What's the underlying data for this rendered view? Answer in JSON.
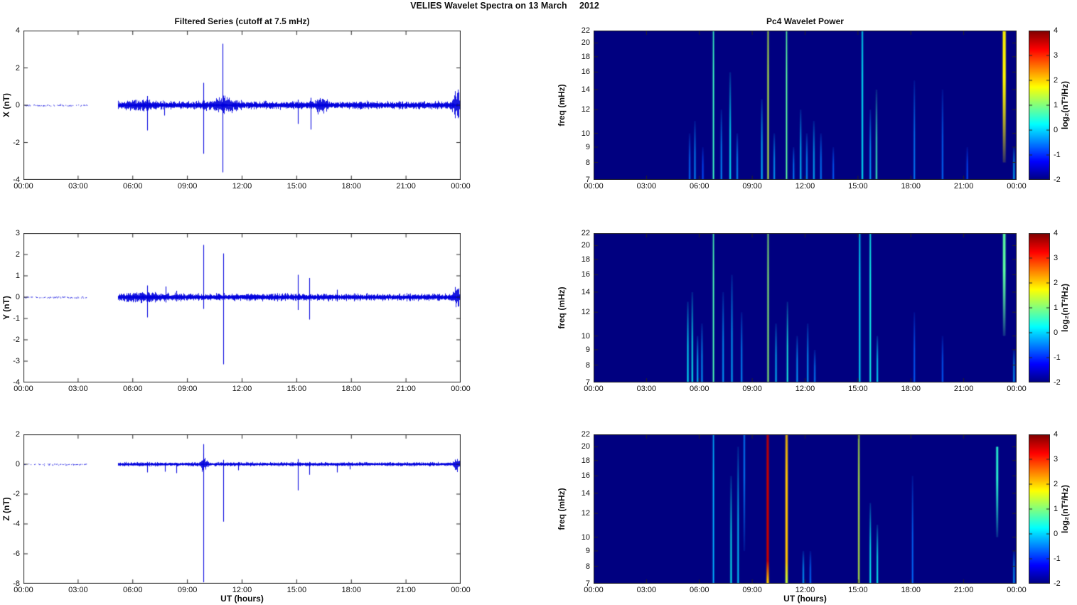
{
  "figure_title": "VELIES Wavelet Spectra on 13 March     2012",
  "colors": {
    "series_line": "#0000dd",
    "axis_frame": "#262626",
    "background": "#ffffff",
    "spectrogram_background": "#000080"
  },
  "x_axis": {
    "label": "UT (hours)",
    "tick_labels": [
      "00:00",
      "03:00",
      "06:00",
      "09:00",
      "12:00",
      "15:00",
      "18:00",
      "21:00",
      "00:00"
    ],
    "tick_hours": [
      0,
      3,
      6,
      9,
      12,
      15,
      18,
      21,
      24
    ],
    "range_hours": [
      0,
      24
    ]
  },
  "left_column_title": "Filtered Series (cutoff at 7.5 mHz)",
  "right_column_title": "Pc4 Wavelet Power",
  "spectrogram_axis": {
    "ylabel": "freq (mHz)",
    "yticks_mhz": [
      22,
      20,
      18,
      16,
      14,
      12,
      10,
      9,
      8,
      7
    ],
    "f_range_mhz": [
      7,
      22
    ],
    "scale": "log"
  },
  "colorbar": {
    "label": "log₂(nT²/Hz)",
    "ticks": [
      4,
      3,
      2,
      1,
      0,
      -1,
      -2
    ],
    "range": [
      -2,
      4
    ],
    "colormap": "jet"
  },
  "chart_data": [
    {
      "id": "filtered_series_x",
      "type": "line",
      "component": "X",
      "ylabel": "X (nT)",
      "ylim": [
        -4,
        4
      ],
      "yticks": [
        4,
        2,
        0,
        -2,
        -4
      ],
      "quiet_segment": {
        "t": [
          0,
          3.5
        ],
        "amplitude_nT": 0.02
      },
      "gap_segment": {
        "t": [
          3.5,
          5.2
        ]
      },
      "noise_segment": {
        "t": [
          5.2,
          24
        ],
        "amplitude_nT": 0.16
      },
      "bursts": [
        {
          "t": 6.3,
          "amp": 0.1,
          "w": 0.5
        },
        {
          "t": 10.93,
          "amp": 0.25,
          "w": 0.5
        },
        {
          "t": 16.35,
          "amp": 0.3,
          "w": 0.2
        },
        {
          "t": 23.8,
          "amp": 0.62,
          "w": 0.15
        }
      ],
      "spikes": [
        {
          "t": 6.78,
          "up": 0.5,
          "dn": -1.35
        },
        {
          "t": 7.72,
          "up": 0.2,
          "dn": -0.55
        },
        {
          "t": 9.88,
          "up": 1.2,
          "dn": -2.6
        },
        {
          "t": 10.93,
          "up": 3.3,
          "dn": -3.6
        },
        {
          "t": 15.05,
          "up": 0.3,
          "dn": -1.0
        },
        {
          "t": 15.75,
          "up": 0.4,
          "dn": -1.3
        }
      ]
    },
    {
      "id": "filtered_series_y",
      "type": "line",
      "component": "Y",
      "ylabel": "Y (nT)",
      "ylim": [
        -4,
        3
      ],
      "yticks": [
        3,
        2,
        1,
        0,
        -1,
        -2,
        -3,
        -4
      ],
      "quiet_segment": {
        "t": [
          0,
          3.5
        ],
        "amplitude_nT": 0.02
      },
      "gap_segment": {
        "t": [
          3.5,
          5.2
        ]
      },
      "noise_segment": {
        "t": [
          5.2,
          24
        ],
        "amplitude_nT": 0.13
      },
      "bursts": [
        {
          "t": 6.5,
          "amp": 0.08,
          "w": 0.8
        },
        {
          "t": 23.8,
          "amp": 0.3,
          "w": 0.15
        }
      ],
      "spikes": [
        {
          "t": 6.78,
          "up": 0.55,
          "dn": -0.95
        },
        {
          "t": 7.8,
          "up": 0.5,
          "dn": -0.25
        },
        {
          "t": 8.4,
          "up": 0.3,
          "dn": -0.2
        },
        {
          "t": 9.88,
          "up": 2.45,
          "dn": -0.55
        },
        {
          "t": 10.95,
          "up": 2.05,
          "dn": -3.15
        },
        {
          "t": 15.05,
          "up": 1.05,
          "dn": -0.6
        },
        {
          "t": 15.7,
          "up": 0.9,
          "dn": -1.05
        },
        {
          "t": 17.2,
          "up": 0.35,
          "dn": -0.2
        }
      ]
    },
    {
      "id": "filtered_series_z",
      "type": "line",
      "component": "Z",
      "ylabel": "Z (nT)",
      "ylim": [
        -8,
        2
      ],
      "yticks": [
        2,
        0,
        -2,
        -4,
        -6,
        -8
      ],
      "quiet_segment": {
        "t": [
          0,
          3.5
        ],
        "amplitude_nT": 0.02
      },
      "gap_segment": {
        "t": [
          3.5,
          5.2
        ]
      },
      "noise_segment": {
        "t": [
          5.2,
          24
        ],
        "amplitude_nT": 0.1
      },
      "bursts": [
        {
          "t": 9.88,
          "amp": 0.4,
          "w": 0.12
        },
        {
          "t": 23.8,
          "amp": 0.3,
          "w": 0.15
        }
      ],
      "spikes": [
        {
          "t": 6.78,
          "up": 0.15,
          "dn": -0.55
        },
        {
          "t": 7.75,
          "up": 0.1,
          "dn": -0.5
        },
        {
          "t": 8.4,
          "up": 0.1,
          "dn": -0.6
        },
        {
          "t": 9.88,
          "up": 1.35,
          "dn": -7.9
        },
        {
          "t": 10.95,
          "up": 0.3,
          "dn": -3.85
        },
        {
          "t": 11.8,
          "up": 0.1,
          "dn": -0.4
        },
        {
          "t": 15.05,
          "up": 0.35,
          "dn": -1.75
        },
        {
          "t": 15.7,
          "up": 0.15,
          "dn": -0.7
        },
        {
          "t": 17.2,
          "up": 0.1,
          "dn": -0.55
        },
        {
          "t": 17.9,
          "up": 0.1,
          "dn": -0.35
        }
      ]
    },
    {
      "id": "wavelet_power_x",
      "type": "heatmap",
      "component": "X",
      "title": "Pc4 Wavelet Power",
      "ylabel": "freq (mHz)",
      "f_range_mhz": [
        7,
        22
      ],
      "background_log2_power": -2,
      "events": [
        {
          "t": 5.45,
          "f": [
            7,
            10
          ],
          "v": -0.6
        },
        {
          "t": 5.75,
          "f": [
            7,
            11
          ],
          "v": -0.4
        },
        {
          "t": 6.2,
          "f": [
            7,
            9
          ],
          "v": -0.8
        },
        {
          "t": 6.8,
          "f": [
            7,
            22
          ],
          "v": 0.6,
          "fade": "none"
        },
        {
          "t": 7.25,
          "f": [
            7,
            12
          ],
          "v": -0.4
        },
        {
          "t": 7.75,
          "f": [
            7,
            16
          ],
          "v": 0.2
        },
        {
          "t": 8.15,
          "f": [
            7,
            10
          ],
          "v": -0.4
        },
        {
          "t": 9.55,
          "f": [
            7,
            13
          ],
          "v": -0.1
        },
        {
          "t": 9.9,
          "f": [
            7,
            22
          ],
          "v": 1.4,
          "fade": "none"
        },
        {
          "t": 10.25,
          "f": [
            7,
            10
          ],
          "v": -0.3
        },
        {
          "t": 10.95,
          "f": [
            7,
            22
          ],
          "v": 0.8,
          "fade": "none"
        },
        {
          "t": 11.35,
          "f": [
            7,
            9
          ],
          "v": -0.5
        },
        {
          "t": 11.75,
          "f": [
            7,
            12
          ],
          "v": -0.1
        },
        {
          "t": 12.1,
          "f": [
            7,
            10
          ],
          "v": -0.4
        },
        {
          "t": 12.5,
          "f": [
            7,
            11
          ],
          "v": -0.2
        },
        {
          "t": 12.9,
          "f": [
            7,
            10
          ],
          "v": -0.5
        },
        {
          "t": 13.6,
          "f": [
            7,
            9
          ],
          "v": -0.7
        },
        {
          "t": 15.25,
          "f": [
            7,
            22
          ],
          "v": 0.2,
          "fade": "none"
        },
        {
          "t": 15.7,
          "f": [
            7,
            12
          ],
          "v": -0.3
        },
        {
          "t": 16.05,
          "f": [
            7,
            14
          ],
          "v": 0.6
        },
        {
          "t": 18.2,
          "f": [
            7,
            15
          ],
          "v": -0.5
        },
        {
          "t": 19.8,
          "f": [
            7,
            14
          ],
          "v": -0.6
        },
        {
          "t": 21.2,
          "f": [
            7,
            9
          ],
          "v": -0.8
        },
        {
          "t": 23.3,
          "f": [
            8,
            22
          ],
          "v": 1.8,
          "w": 3.5,
          "fade": "down"
        },
        {
          "t": 23.85,
          "f": [
            7,
            9
          ],
          "v": -0.2
        }
      ]
    },
    {
      "id": "wavelet_power_y",
      "type": "heatmap",
      "component": "Y",
      "title": "Pc4 Wavelet Power",
      "ylabel": "freq (mHz)",
      "f_range_mhz": [
        7,
        22
      ],
      "background_log2_power": -2,
      "events": [
        {
          "t": 5.35,
          "f": [
            7,
            13
          ],
          "v": 0.2
        },
        {
          "t": 5.6,
          "f": [
            7,
            14
          ],
          "v": 0.3
        },
        {
          "t": 5.9,
          "f": [
            7,
            10
          ],
          "v": -0.1
        },
        {
          "t": 6.15,
          "f": [
            7,
            11
          ],
          "v": -0.3
        },
        {
          "t": 6.8,
          "f": [
            7,
            22
          ],
          "v": 0.7,
          "fade": "none"
        },
        {
          "t": 7.35,
          "f": [
            7,
            14
          ],
          "v": -0.3
        },
        {
          "t": 7.85,
          "f": [
            7,
            16
          ],
          "v": -0.2
        },
        {
          "t": 8.4,
          "f": [
            7,
            12
          ],
          "v": -0.4
        },
        {
          "t": 9.9,
          "f": [
            7,
            22
          ],
          "v": 1.1,
          "fade": "none"
        },
        {
          "t": 10.35,
          "f": [
            7,
            11
          ],
          "v": -0.1
        },
        {
          "t": 11.0,
          "f": [
            7,
            13
          ],
          "v": 0.4
        },
        {
          "t": 11.55,
          "f": [
            7,
            10
          ],
          "v": -0.3
        },
        {
          "t": 12.15,
          "f": [
            7,
            11
          ],
          "v": -0.3
        },
        {
          "t": 12.55,
          "f": [
            7,
            9
          ],
          "v": -0.5
        },
        {
          "t": 15.1,
          "f": [
            7,
            22
          ],
          "v": 0.1,
          "fade": "none"
        },
        {
          "t": 15.7,
          "f": [
            7,
            22
          ],
          "v": 0.35,
          "fade": "none"
        },
        {
          "t": 16.1,
          "f": [
            7,
            10
          ],
          "v": 0.1
        },
        {
          "t": 18.2,
          "f": [
            7,
            12
          ],
          "v": -0.7
        },
        {
          "t": 19.8,
          "f": [
            7,
            10
          ],
          "v": -0.7
        },
        {
          "t": 23.3,
          "f": [
            10,
            22
          ],
          "v": 0.8,
          "w": 3,
          "fade": "down"
        },
        {
          "t": 23.85,
          "f": [
            7,
            9
          ],
          "v": -0.3
        }
      ]
    },
    {
      "id": "wavelet_power_z",
      "type": "heatmap",
      "component": "Z",
      "title": "Pc4 Wavelet Power",
      "ylabel": "freq (mHz)",
      "f_range_mhz": [
        7,
        22
      ],
      "background_log2_power": -2,
      "events": [
        {
          "t": 6.8,
          "f": [
            7,
            22
          ],
          "v": -0.2,
          "fade": "none"
        },
        {
          "t": 7.8,
          "f": [
            7,
            16
          ],
          "v": 0.3
        },
        {
          "t": 8.2,
          "f": [
            7,
            20
          ],
          "v": 0.0
        },
        {
          "t": 8.55,
          "f": [
            9,
            22
          ],
          "v": -0.5,
          "fade": "down"
        },
        {
          "t": 9.88,
          "f": [
            7,
            22
          ],
          "v": 3.6,
          "vb": 2.0,
          "w": 2.5,
          "fade": "none"
        },
        {
          "t": 10.95,
          "f": [
            7,
            22
          ],
          "v": 2.1,
          "vb": 1.4,
          "w": 2.5,
          "fade": "none"
        },
        {
          "t": 11.9,
          "f": [
            7,
            9
          ],
          "v": -0.3
        },
        {
          "t": 12.3,
          "f": [
            7,
            9
          ],
          "v": -0.6
        },
        {
          "t": 15.05,
          "f": [
            7,
            22
          ],
          "v": 1.4,
          "fade": "none"
        },
        {
          "t": 15.7,
          "f": [
            7,
            13
          ],
          "v": 0.3
        },
        {
          "t": 16.1,
          "f": [
            7,
            11
          ],
          "v": 0.3
        },
        {
          "t": 18.1,
          "f": [
            7,
            16
          ],
          "v": -0.6
        },
        {
          "t": 22.9,
          "f": [
            10,
            20
          ],
          "v": 0.5,
          "w": 2,
          "fade": "down"
        },
        {
          "t": 23.85,
          "f": [
            7,
            9
          ],
          "v": -0.3
        }
      ]
    }
  ]
}
